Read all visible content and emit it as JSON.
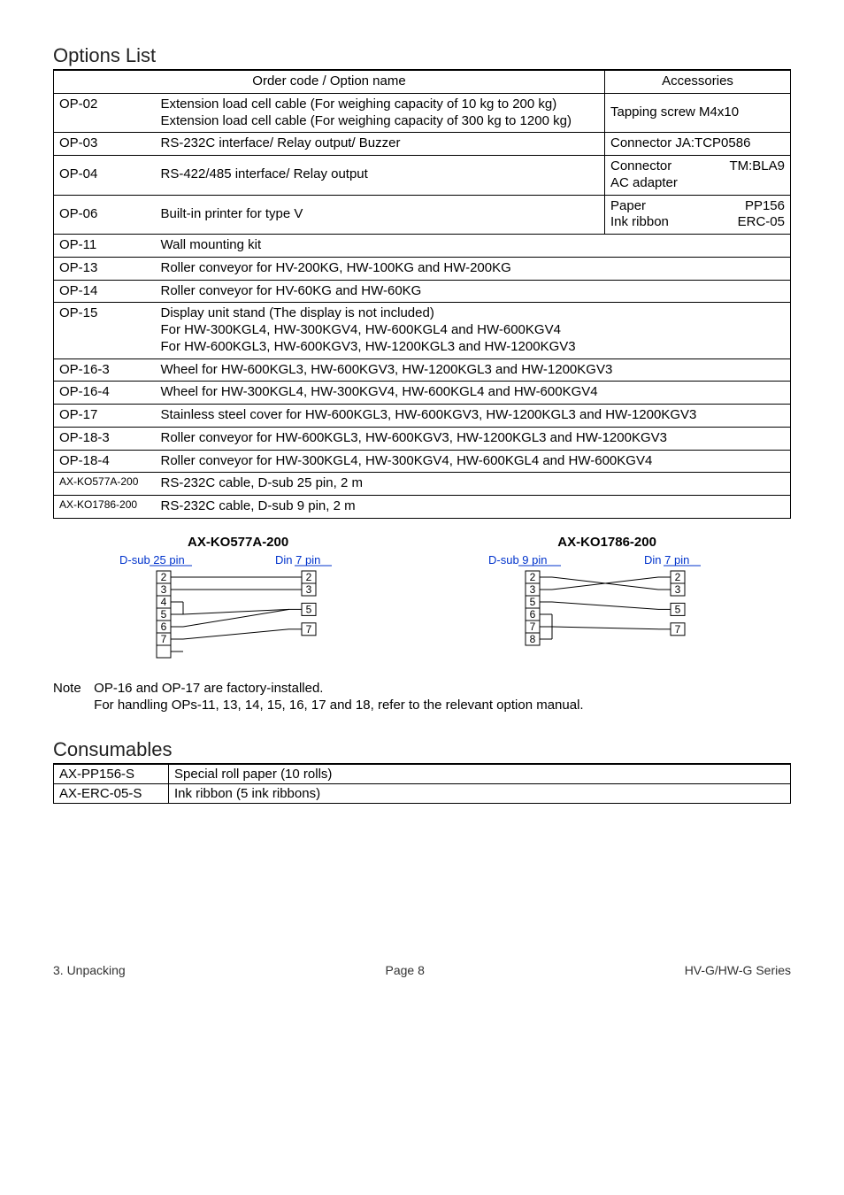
{
  "sections": {
    "options_title": "Options List",
    "consumables_title": "Consumables"
  },
  "options_table": {
    "header_left": "Order code / Option name",
    "header_right": "Accessories",
    "rows": [
      {
        "code": "OP-02",
        "desc": "Extension load cell cable (For weighing capacity of 10 kg to 200 kg)\nExtension load cell cable (For weighing capacity of 300 kg to 1200 kg)",
        "acc": "Tapping screw M4x10",
        "acc_valign": "middle"
      },
      {
        "code": "OP-03",
        "desc": "RS-232C interface/ Relay output/ Buzzer",
        "acc": "Connector  JA:TCP0586"
      },
      {
        "code": "OP-04",
        "desc": "RS-422/485 interface/ Relay output",
        "acc_lines": [
          [
            "Connector",
            "TM:BLA9"
          ],
          [
            "AC adapter",
            ""
          ]
        ],
        "desc_valign": "middle"
      },
      {
        "code": "OP-06",
        "desc": "Built-in printer for type V",
        "acc_lines": [
          [
            "Paper",
            "PP156"
          ],
          [
            "Ink ribbon",
            "ERC-05"
          ]
        ],
        "desc_valign": "middle"
      },
      {
        "code": "OP-11",
        "desc": "Wall mounting kit",
        "span": true
      },
      {
        "code": "OP-13",
        "desc": "Roller conveyor for HV-200KG, HW-100KG and HW-200KG",
        "span": true
      },
      {
        "code": "OP-14",
        "desc": "Roller conveyor for HV-60KG and HW-60KG",
        "span": true
      },
      {
        "code": "OP-15",
        "desc": "Display unit stand (The display is not included)\n  For HW-300KGL4, HW-300KGV4, HW-600KGL4 and HW-600KGV4\n  For HW-600KGL3, HW-600KGV3, HW-1200KGL3 and HW-1200KGV3",
        "span": true
      },
      {
        "code": "OP-16-3",
        "desc": "Wheel for HW-600KGL3, HW-600KGV3, HW-1200KGL3 and HW-1200KGV3",
        "span": true
      },
      {
        "code": "OP-16-4",
        "desc": "Wheel for HW-300KGL4, HW-300KGV4, HW-600KGL4 and HW-600KGV4",
        "span": true
      },
      {
        "code": "OP-17",
        "desc": "Stainless steel cover for HW-600KGL3, HW-600KGV3, HW-1200KGL3 and HW-1200KGV3",
        "span": true
      },
      {
        "code": "OP-18-3",
        "desc": "Roller conveyor for HW-600KGL3, HW-600KGV3, HW-1200KGL3 and HW-1200KGV3",
        "span": true
      },
      {
        "code": "OP-18-4",
        "desc": "Roller conveyor for HW-300KGL4, HW-300KGV4, HW-600KGL4 and HW-600KGV4",
        "span": true
      },
      {
        "code": "AX-KO577A-200",
        "desc": "RS-232C cable, D-sub 25 pin, 2 m",
        "span": true,
        "small_code": true
      },
      {
        "code": "AX-KO1786-200",
        "desc": "RS-232C cable, D-sub 9 pin, 2 m",
        "span": true,
        "small_code": true
      }
    ]
  },
  "cable_diagrams": {
    "left_title": "AX-KO577A-200",
    "right_title": "AX-KO1786-200",
    "left": {
      "left_label": "D-sub 25 pin",
      "right_label": "Din 7 pin",
      "left_pins": [
        "2",
        "3",
        "4",
        "5",
        "6",
        "7",
        ""
      ],
      "right_pins": [
        "2",
        "3",
        "5",
        "7"
      ],
      "label_color": "#0033cc"
    },
    "right": {
      "left_label": "D-sub 9 pin",
      "right_label": "Din 7 pin",
      "left_pins": [
        "2",
        "3",
        "5",
        "6",
        "7",
        "8"
      ],
      "right_pins": [
        "2",
        "3",
        "5",
        "7"
      ],
      "label_color": "#0033cc"
    }
  },
  "note": {
    "label": "Note",
    "line1": "OP-16 and OP-17 are factory-installed.",
    "line2": "For handling OPs-11, 13, 14, 15, 16, 17 and 18, refer to the relevant option manual."
  },
  "consumables_table": {
    "rows": [
      {
        "code": "AX-PP156-S",
        "desc": "Special roll paper   (10 rolls)"
      },
      {
        "code": "AX-ERC-05-S",
        "desc": "Ink ribbon    (5 ink ribbons)"
      }
    ]
  },
  "footer": {
    "left": "3. Unpacking",
    "mid": "Page 8",
    "right": "HV-G/HW-G Series"
  },
  "colors": {
    "border": "#000000",
    "label_blue": "#0033cc"
  }
}
